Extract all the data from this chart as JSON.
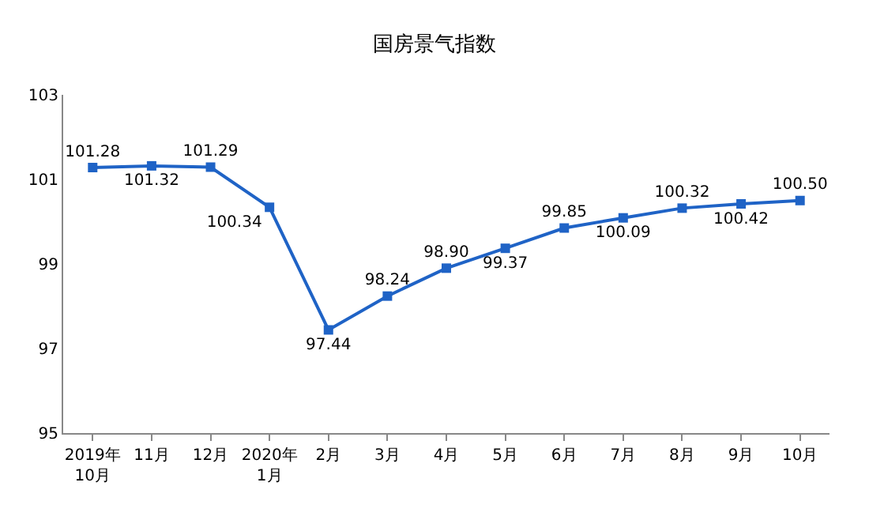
{
  "chart_data": {
    "type": "line",
    "title": "国房景气指数",
    "categories": [
      "2019年\n10月",
      "11月",
      "12月",
      "2020年\n1月",
      "2月",
      "3月",
      "4月",
      "5月",
      "6月",
      "7月",
      "8月",
      "9月",
      "10月"
    ],
    "series": [
      {
        "color": "#1f63c6",
        "values": [
          101.28,
          101.32,
          101.29,
          100.34,
          97.44,
          98.24,
          98.9,
          99.37,
          99.85,
          100.09,
          100.32,
          100.42,
          100.5
        ],
        "value_labels": [
          "101.28",
          "101.32",
          "101.29",
          "100.34",
          "97.44",
          "98.24",
          "98.90",
          "99.37",
          "99.85",
          "100.09",
          "100.32",
          "100.42",
          "100.50"
        ]
      }
    ],
    "ylim": [
      95,
      103
    ],
    "yticks": [
      95,
      97,
      99,
      101,
      103
    ],
    "marker": "square",
    "line_style": "solid"
  }
}
